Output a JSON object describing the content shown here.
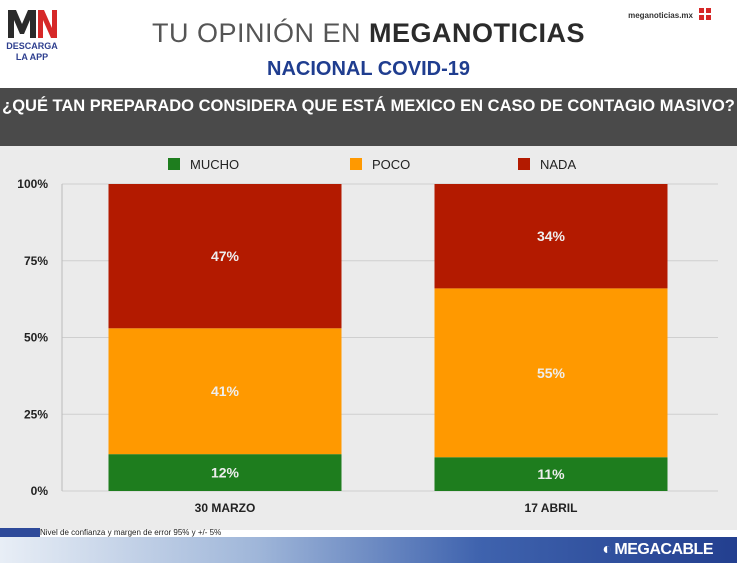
{
  "header": {
    "logo_text": "MN",
    "logo_tag": "DESCARGA\nLA APP",
    "title_light": "TU OPINIÓN EN ",
    "title_bold": "MEGANOTICIAS",
    "subtitle": "NACIONAL COVID-19",
    "site_url": "meganoticias.mx"
  },
  "question": "¿QUÉ TAN PREPARADO CONSIDERA QUE ESTÁ MEXICO EN CASO DE CONTAGIO MASIVO?",
  "footnote": "Nivel de confianza y margen de error 95% y +/- 5%",
  "brand": "MEGACABLE",
  "colors": {
    "mucho": "#1e7d1e",
    "poco": "#ff9900",
    "nada": "#b31a00",
    "axis_text": "#222222",
    "label_text": "#eeeeee",
    "grid": "#cfcfcf"
  },
  "chart_data": {
    "type": "bar",
    "stacked": true,
    "categories": [
      "30 MARZO",
      "17 ABRIL"
    ],
    "series": [
      {
        "name": "MUCHO",
        "values": [
          12,
          11
        ],
        "labels": [
          "12%",
          "11%"
        ]
      },
      {
        "name": "POCO",
        "values": [
          41,
          55
        ],
        "labels": [
          "41%",
          "55%"
        ]
      },
      {
        "name": "NADA",
        "values": [
          47,
          34
        ],
        "labels": [
          "47%",
          "34%"
        ]
      }
    ],
    "yticks": [
      0,
      25,
      50,
      75,
      100
    ],
    "ytick_labels": [
      "0%",
      "25%",
      "50%",
      "75%",
      "100%"
    ],
    "ylim": [
      0,
      100
    ],
    "legend_position": "top",
    "grid": true
  }
}
